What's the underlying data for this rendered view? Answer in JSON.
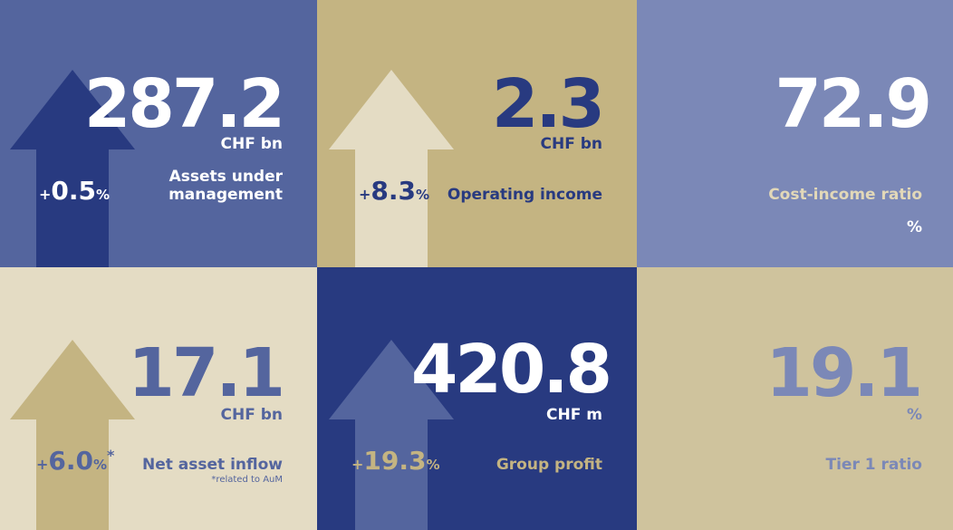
{
  "tiles": [
    {
      "value": "287.2",
      "unit": "CHF bn",
      "label": "Assets under management",
      "change": {
        "sign": "+",
        "number": "0.5",
        "pct": "%"
      },
      "background": "#54659e",
      "arrow_color": "#283a80",
      "value_color": "#ffffff",
      "text_color": "#ffffff",
      "change_color": "#ffffff"
    },
    {
      "value": "2.3",
      "unit": "CHF bn",
      "label": "Operating income",
      "change": {
        "sign": "+",
        "number": "8.3",
        "pct": "%"
      },
      "background": "#c4b482",
      "arrow_color": "#e4dcc4",
      "value_color": "#283a80",
      "text_color": "#283a80",
      "change_color": "#283a80"
    },
    {
      "value": "72.9",
      "unit": "",
      "label": "Cost-income ratio",
      "unit_below": "%",
      "background": "#7b88b7",
      "value_color": "#ffffff",
      "label_color": "#e2d8b8",
      "unit_color": "#ffffff"
    },
    {
      "value": "17.1",
      "unit": "CHF bn",
      "label": "Net asset inflow",
      "footnote": "*related to AuM",
      "change": {
        "sign": "+",
        "number": "6.0",
        "pct": "%",
        "star": "*"
      },
      "background": "#e4dcc4",
      "arrow_color": "#c4b482",
      "value_color": "#54659e",
      "text_color": "#54659e",
      "change_color": "#54659e"
    },
    {
      "value": "420.8",
      "unit": "CHF m",
      "label": "Group profit",
      "change": {
        "sign": "+",
        "number": "19.3",
        "pct": "%"
      },
      "background": "#283a80",
      "arrow_color": "#54659e",
      "value_color": "#ffffff",
      "text_color": "#c4b482",
      "unit_color": "#ffffff",
      "change_color": "#c4b482"
    },
    {
      "value": "19.1",
      "unit": "%",
      "label": "Tier 1 ratio",
      "background": "#cfc39d",
      "value_color": "#7b88b7",
      "text_color": "#7b88b7"
    }
  ]
}
